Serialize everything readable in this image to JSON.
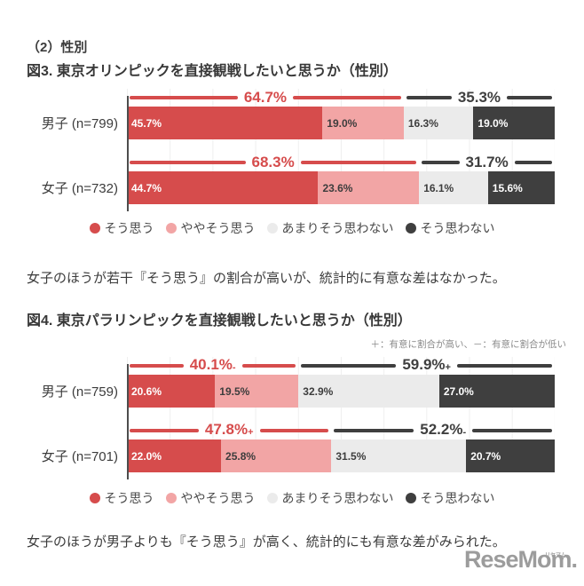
{
  "page": {
    "section_heading": "（2）性別",
    "figure3_note": "女子のほうが若干『そう思う』の割合が高いが、統計的に有意な差はなかった。",
    "figure4_note": "女子のほうが男子よりも『そう思う』が高く、統計的にも有意な差がみられた。",
    "logo_text": "ReseMom",
    "logo_period": ".",
    "logo_ruby": "リセマム"
  },
  "colors": {
    "agree": "#d64c4c",
    "somewhat_agree": "#f2a5a5",
    "somewhat_disagree": "#ebebeb",
    "disagree": "#3f3f3f",
    "segment_text": [
      "#ffffff",
      "#3d3d3d",
      "#3d3d3d",
      "#ffffff"
    ],
    "axis": "#4d4d4d",
    "grid": "#efefef",
    "annotation_text": "#8a8a8a",
    "logo": "#9c9c9c"
  },
  "legend": {
    "items": [
      {
        "label": "そう思う",
        "color": "#d64c4c"
      },
      {
        "label": "ややそう思う",
        "color": "#f2a5a5"
      },
      {
        "label": "あまりそう思わない",
        "color": "#ebebeb"
      },
      {
        "label": "そう思わない",
        "color": "#3f3f3f"
      }
    ]
  },
  "chart_data": [
    {
      "type": "bar",
      "variant": "stacked-horizontal",
      "title": "図3. 東京オリンピックを直接観戦したいと思うか（性別）",
      "categories": [
        "男子 (n=799)",
        "女子 (n=732)"
      ],
      "series": [
        {
          "name": "そう思う",
          "values": [
            45.7,
            44.7
          ]
        },
        {
          "name": "ややそう思う",
          "values": [
            19.0,
            23.6
          ]
        },
        {
          "name": "あまりそう思わない",
          "values": [
            16.3,
            16.1
          ]
        },
        {
          "name": "そう思わない",
          "values": [
            19.0,
            15.6
          ]
        }
      ],
      "brackets": [
        {
          "agree_label": "64.7%",
          "agree_value": 64.7,
          "agree_sign": "",
          "disagree_label": "35.3%",
          "disagree_value": 35.3,
          "disagree_sign": ""
        },
        {
          "agree_label": "68.3%",
          "agree_value": 68.3,
          "agree_sign": "",
          "disagree_label": "31.7%",
          "disagree_value": 31.7,
          "disagree_sign": ""
        }
      ],
      "xlim": [
        0,
        100
      ],
      "grid": true,
      "legend_position": "bottom"
    },
    {
      "type": "bar",
      "variant": "stacked-horizontal",
      "title": "図4. 東京パラリンピックを直接観戦したいと思うか（性別）",
      "annotation": "＋：有意に割合が高い、－：有意に割合が低い",
      "categories": [
        "男子 (n=759)",
        "女子 (n=701)"
      ],
      "series": [
        {
          "name": "そう思う",
          "values": [
            20.6,
            22.0
          ]
        },
        {
          "name": "ややそう思う",
          "values": [
            19.5,
            25.8
          ]
        },
        {
          "name": "あまりそう思わない",
          "values": [
            32.9,
            31.5
          ]
        },
        {
          "name": "そう思わない",
          "values": [
            27.0,
            20.7
          ]
        }
      ],
      "brackets": [
        {
          "agree_label": "40.1%",
          "agree_value": 40.1,
          "agree_sign": "-",
          "disagree_label": "59.9%",
          "disagree_value": 59.9,
          "disagree_sign": "+"
        },
        {
          "agree_label": "47.8%",
          "agree_value": 47.8,
          "agree_sign": "+",
          "disagree_label": "52.2%",
          "disagree_value": 52.2,
          "disagree_sign": "-"
        }
      ],
      "xlim": [
        0,
        100
      ],
      "grid": true,
      "legend_position": "bottom"
    }
  ]
}
